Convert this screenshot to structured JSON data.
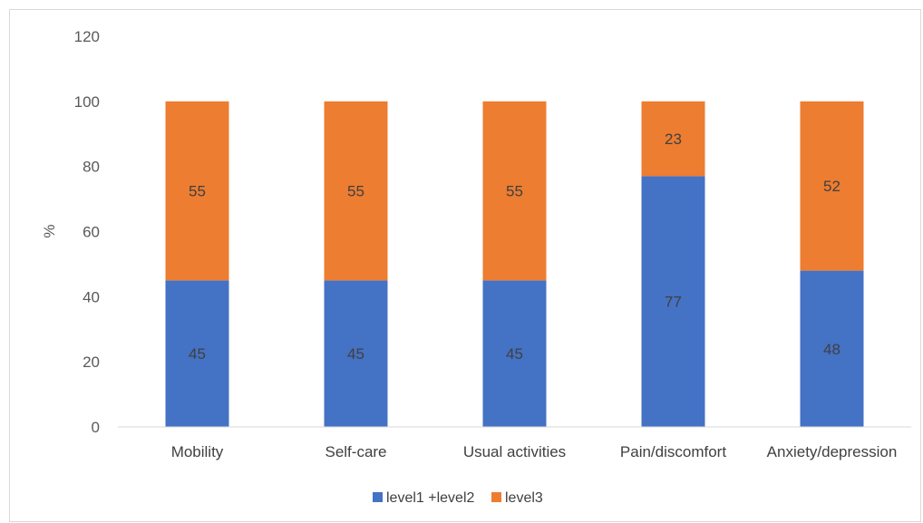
{
  "chart_data": {
    "type": "bar",
    "stacked": true,
    "categories": [
      "Mobility",
      "Self-care",
      "Usual activities",
      "Pain/discomfort",
      "Anxiety/depression"
    ],
    "series": [
      {
        "name": "level1 +level2",
        "values": [
          45,
          45,
          45,
          77,
          48
        ],
        "color": "#4472C4"
      },
      {
        "name": "level3",
        "values": [
          55,
          55,
          55,
          23,
          52
        ],
        "color": "#ED7D31"
      }
    ],
    "title": "",
    "xlabel": "",
    "ylabel": "%",
    "ylim": [
      0,
      120
    ],
    "yticks": [
      0,
      20,
      40,
      60,
      80,
      100,
      120
    ],
    "grid": false,
    "legend_position": "bottom",
    "data_labels": true
  }
}
